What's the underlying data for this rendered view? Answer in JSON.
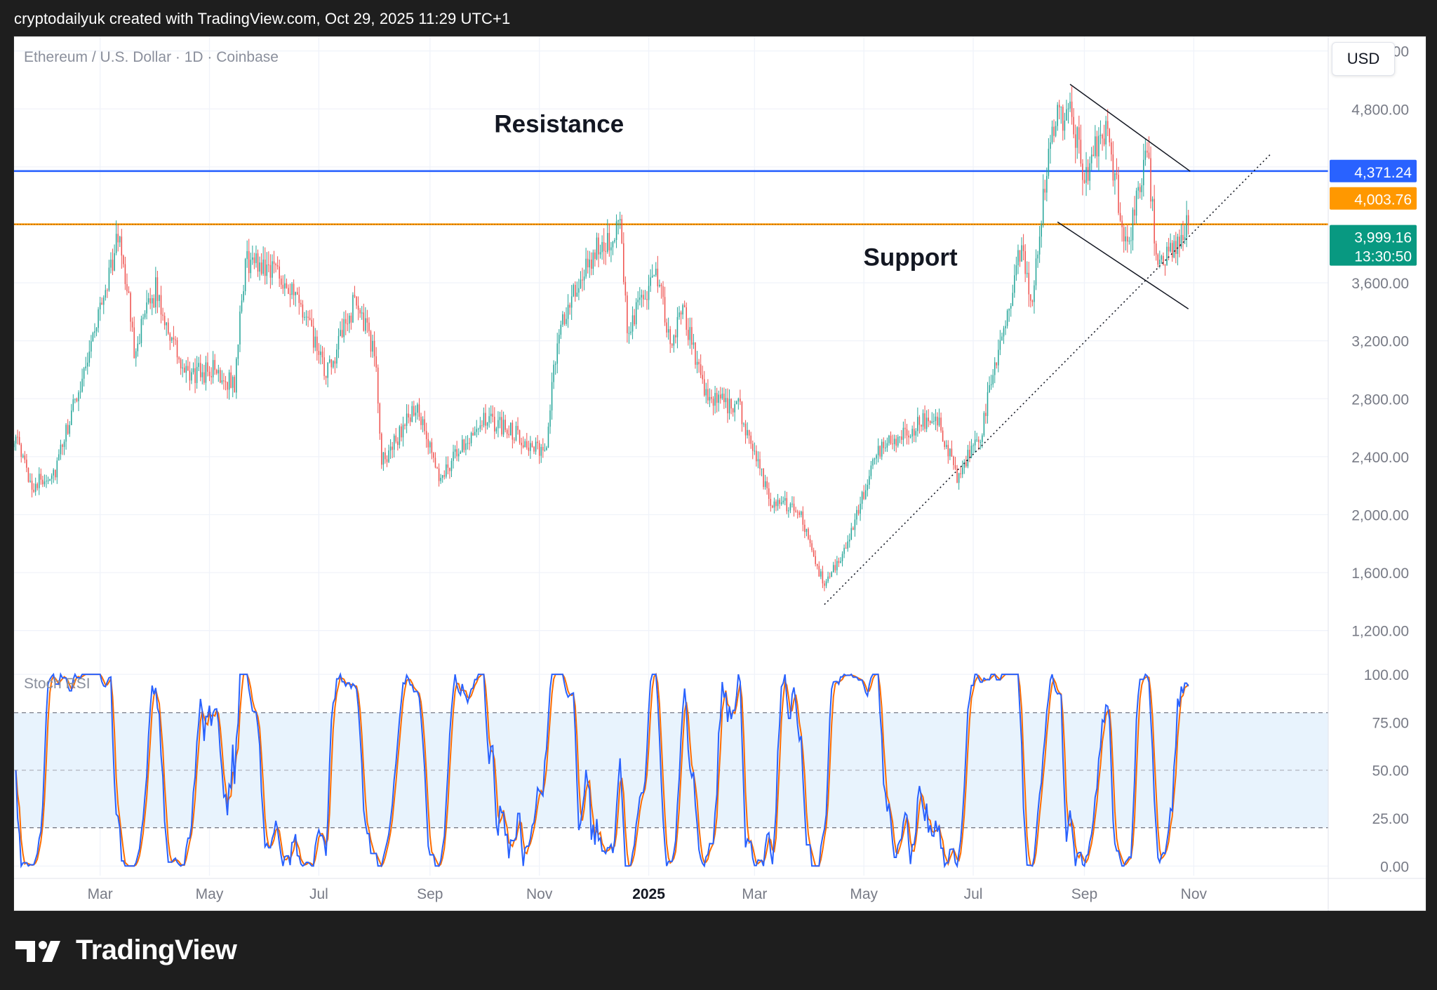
{
  "header": {
    "caption": "cryptodailyuk created with TradingView.com, Oct 29, 2025 11:29 UTC+1"
  },
  "brand": {
    "name": "TradingView",
    "icon": "tradingview-logo-icon"
  },
  "colors": {
    "bull": "#26a69a",
    "bear": "#ef5350",
    "resistance": "#2962ff",
    "support": "#ff9800",
    "stoch_k": "#2962ff",
    "stoch_d": "#ff6d00",
    "last_price": "#089981",
    "band_fill": "#e8f3fd"
  },
  "chart_data": [
    {
      "type": "candlestick",
      "title": "Ethereum / U.S. Dollar · 1D · Coinbase",
      "currency": "USD",
      "x_range": [
        "2024-01-13",
        "2026-01-15"
      ],
      "ylim": [
        1000,
        5300
      ],
      "yticks": [
        1200,
        1600,
        2000,
        2400,
        2800,
        3200,
        3600,
        4000,
        4400,
        4800,
        5200
      ],
      "ytick_labels": [
        "1,200.00",
        "1,600.00",
        "2,000.00",
        "2,400.00",
        "2,800.00",
        "3,200.00",
        "3,600.00",
        "",
        "",
        "4,800.00",
        "5,200.00"
      ],
      "xticks": [
        {
          "date": "2024-03-01",
          "label": "Mar"
        },
        {
          "date": "2024-05-01",
          "label": "May"
        },
        {
          "date": "2024-07-01",
          "label": "Jul"
        },
        {
          "date": "2024-09-01",
          "label": "Sep"
        },
        {
          "date": "2024-11-01",
          "label": "Nov"
        },
        {
          "date": "2025-01-01",
          "label": "2025"
        },
        {
          "date": "2025-03-01",
          "label": "Mar"
        },
        {
          "date": "2025-05-01",
          "label": "May"
        },
        {
          "date": "2025-07-01",
          "label": "Jul"
        },
        {
          "date": "2025-09-01",
          "label": "Sep"
        },
        {
          "date": "2025-11-01",
          "label": "Nov"
        }
      ],
      "price_path": [
        [
          "2024-01-13",
          2550
        ],
        [
          "2024-01-23",
          2200
        ],
        [
          "2024-02-05",
          2300
        ],
        [
          "2024-02-20",
          2950
        ],
        [
          "2024-03-12",
          3950
        ],
        [
          "2024-03-20",
          3150
        ],
        [
          "2024-04-01",
          3550
        ],
        [
          "2024-04-17",
          2950
        ],
        [
          "2024-05-03",
          3000
        ],
        [
          "2024-05-15",
          2900
        ],
        [
          "2024-05-21",
          3750
        ],
        [
          "2024-06-08",
          3700
        ],
        [
          "2024-06-24",
          3350
        ],
        [
          "2024-07-05",
          2950
        ],
        [
          "2024-07-22",
          3500
        ],
        [
          "2024-08-02",
          3050
        ],
        [
          "2024-08-05",
          2350
        ],
        [
          "2024-08-24",
          2750
        ],
        [
          "2024-09-06",
          2250
        ],
        [
          "2024-09-29",
          2650
        ],
        [
          "2024-10-15",
          2600
        ],
        [
          "2024-11-04",
          2400
        ],
        [
          "2024-11-12",
          3300
        ],
        [
          "2024-12-06",
          3900
        ],
        [
          "2024-12-16",
          3950
        ],
        [
          "2024-12-20",
          3300
        ],
        [
          "2025-01-06",
          3650
        ],
        [
          "2025-01-13",
          3150
        ],
        [
          "2025-01-20",
          3400
        ],
        [
          "2025-02-03",
          2800
        ],
        [
          "2025-02-20",
          2750
        ],
        [
          "2025-03-10",
          2100
        ],
        [
          "2025-03-25",
          2050
        ],
        [
          "2025-04-09",
          1500
        ],
        [
          "2025-04-22",
          1800
        ],
        [
          "2025-05-09",
          2450
        ],
        [
          "2025-06-10",
          2700
        ],
        [
          "2025-06-22",
          2250
        ],
        [
          "2025-07-05",
          2550
        ],
        [
          "2025-07-28",
          3850
        ],
        [
          "2025-08-02",
          3450
        ],
        [
          "2025-08-14",
          4700
        ],
        [
          "2025-08-24",
          4800
        ],
        [
          "2025-09-01",
          4350
        ],
        [
          "2025-09-13",
          4650
        ],
        [
          "2025-09-25",
          3850
        ],
        [
          "2025-10-06",
          4550
        ],
        [
          "2025-10-11",
          3800
        ],
        [
          "2025-10-22",
          3800
        ],
        [
          "2025-10-29",
          3999
        ]
      ],
      "levels": [
        {
          "name": "Resistance",
          "price": 4371.24,
          "label": "4,371.24"
        },
        {
          "name": "Support",
          "price": 4003.76,
          "label": "4,003.76"
        }
      ],
      "last_price": {
        "label": "3,999.16",
        "countdown": "13:30:50",
        "price": 3999.16
      },
      "annotations": [
        {
          "text": "Resistance",
          "date": "2024-11-12",
          "price": 4640
        },
        {
          "text": "Support",
          "date": "2025-05-27",
          "price": 3720
        }
      ],
      "trendlines": [
        {
          "kind": "dotted",
          "from": [
            "2025-04-09",
            1380
          ],
          "to": [
            "2025-12-14",
            4490
          ]
        },
        {
          "kind": "solid",
          "from": [
            "2025-08-24",
            4970
          ],
          "to": [
            "2025-10-30",
            4370
          ]
        },
        {
          "kind": "solid",
          "from": [
            "2025-08-17",
            4020
          ],
          "to": [
            "2025-10-29",
            3420
          ]
        }
      ]
    },
    {
      "type": "line",
      "title": "Stoch RSI",
      "ylim": [
        -5,
        107
      ],
      "yticks": [
        0,
        25,
        50,
        75,
        100
      ],
      "ytick_labels": [
        "0.00",
        "25.00",
        "50.00",
        "75.00",
        "100.00"
      ],
      "bands": [
        20,
        50,
        80
      ],
      "series": [
        {
          "key": "k"
        },
        {
          "key": "d"
        }
      ]
    }
  ]
}
